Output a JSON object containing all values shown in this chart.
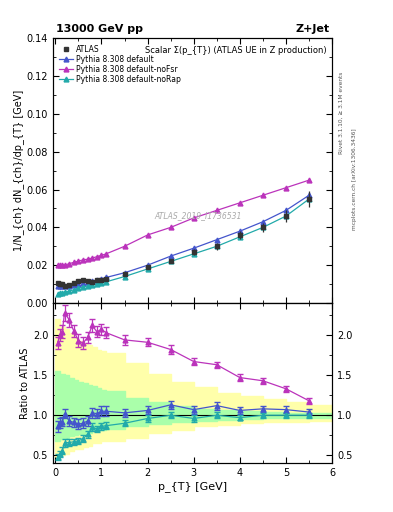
{
  "title_top": "13000 GeV pp",
  "title_right": "Z+Jet",
  "plot_title": "Scalar Σ(p_{T}) (ATLAS UE in Z production)",
  "ylabel_main": "1/N_{ch} dN_{ch}/dp_{T} [GeV]",
  "ylabel_ratio": "Ratio to ATLAS",
  "xlabel": "p_{T} [GeV]",
  "watermark": "ATLAS_2019_I1736531",
  "right_label_top": "Rivet 3.1.10, ≥ 3.1M events",
  "right_label_bot": "mcplots.cern.ch [arXiv:1306.3436]",
  "atlas_x": [
    0.05,
    0.1,
    0.15,
    0.2,
    0.3,
    0.4,
    0.5,
    0.6,
    0.7,
    0.8,
    0.9,
    1.0,
    1.1,
    1.5,
    2.0,
    2.5,
    3.0,
    3.5,
    4.0,
    4.5,
    5.0,
    5.5
  ],
  "atlas_y": [
    0.0105,
    0.01,
    0.0098,
    0.0088,
    0.0095,
    0.0105,
    0.0115,
    0.012,
    0.0118,
    0.0112,
    0.012,
    0.0122,
    0.0128,
    0.0155,
    0.0188,
    0.022,
    0.027,
    0.03,
    0.036,
    0.04,
    0.046,
    0.055
  ],
  "atlas_yerr": [
    0.0008,
    0.0007,
    0.0007,
    0.0006,
    0.0006,
    0.0007,
    0.0007,
    0.0007,
    0.0007,
    0.0007,
    0.0007,
    0.0007,
    0.0008,
    0.0008,
    0.001,
    0.001,
    0.0015,
    0.0018,
    0.002,
    0.0025,
    0.003,
    0.004
  ],
  "pythia_default_x": [
    0.05,
    0.1,
    0.15,
    0.2,
    0.3,
    0.4,
    0.5,
    0.6,
    0.7,
    0.8,
    0.9,
    1.0,
    1.1,
    1.5,
    2.0,
    2.5,
    3.0,
    3.5,
    4.0,
    4.5,
    5.0,
    5.5
  ],
  "pythia_default_y": [
    0.009,
    0.009,
    0.009,
    0.009,
    0.0088,
    0.0095,
    0.0102,
    0.0108,
    0.011,
    0.0115,
    0.0122,
    0.0128,
    0.0135,
    0.016,
    0.02,
    0.0248,
    0.029,
    0.0335,
    0.038,
    0.043,
    0.049,
    0.057
  ],
  "pythia_nofsr_x": [
    0.05,
    0.1,
    0.15,
    0.2,
    0.3,
    0.4,
    0.5,
    0.6,
    0.7,
    0.8,
    0.9,
    1.0,
    1.1,
    1.5,
    2.0,
    2.5,
    3.0,
    3.5,
    4.0,
    4.5,
    5.0,
    5.5
  ],
  "pythia_nofsr_y": [
    0.02,
    0.02,
    0.02,
    0.02,
    0.0208,
    0.0215,
    0.0222,
    0.0228,
    0.0232,
    0.0238,
    0.0245,
    0.0252,
    0.026,
    0.03,
    0.036,
    0.04,
    0.045,
    0.049,
    0.053,
    0.057,
    0.061,
    0.065
  ],
  "pythia_norap_x": [
    0.05,
    0.1,
    0.15,
    0.2,
    0.3,
    0.4,
    0.5,
    0.6,
    0.7,
    0.8,
    0.9,
    1.0,
    1.1,
    1.5,
    2.0,
    2.5,
    3.0,
    3.5,
    4.0,
    4.5,
    5.0,
    5.5
  ],
  "pythia_norap_y": [
    0.005,
    0.0052,
    0.0055,
    0.0058,
    0.0063,
    0.007,
    0.0078,
    0.0085,
    0.009,
    0.0095,
    0.01,
    0.0105,
    0.0112,
    0.014,
    0.018,
    0.022,
    0.026,
    0.03,
    0.035,
    0.04,
    0.046,
    0.055
  ],
  "ratio_default_y": [
    0.86,
    0.9,
    0.92,
    1.02,
    0.93,
    0.91,
    0.89,
    0.9,
    0.93,
    1.03,
    1.02,
    1.05,
    1.05,
    1.03,
    1.06,
    1.13,
    1.07,
    1.12,
    1.06,
    1.08,
    1.07,
    1.04
  ],
  "ratio_default_yerr": [
    0.07,
    0.06,
    0.06,
    0.06,
    0.06,
    0.06,
    0.06,
    0.06,
    0.06,
    0.06,
    0.06,
    0.06,
    0.06,
    0.05,
    0.05,
    0.05,
    0.05,
    0.05,
    0.04,
    0.04,
    0.04,
    0.04
  ],
  "ratio_nofsr_y": [
    1.9,
    2.0,
    2.04,
    2.28,
    2.19,
    2.05,
    1.93,
    1.9,
    1.97,
    2.12,
    2.04,
    2.07,
    2.03,
    1.94,
    1.91,
    1.82,
    1.67,
    1.63,
    1.47,
    1.43,
    1.33,
    1.18
  ],
  "ratio_nofsr_yerr": [
    0.07,
    0.08,
    0.08,
    0.1,
    0.09,
    0.08,
    0.08,
    0.07,
    0.07,
    0.08,
    0.07,
    0.07,
    0.07,
    0.06,
    0.05,
    0.05,
    0.04,
    0.04,
    0.04,
    0.04,
    0.04,
    0.04
  ],
  "ratio_norap_y": [
    0.48,
    0.52,
    0.56,
    0.66,
    0.66,
    0.67,
    0.68,
    0.71,
    0.76,
    0.85,
    0.83,
    0.86,
    0.87,
    0.9,
    0.96,
    1.0,
    0.96,
    1.0,
    0.97,
    1.0,
    1.0,
    1.0
  ],
  "ratio_norap_yerr": [
    0.04,
    0.04,
    0.04,
    0.05,
    0.04,
    0.04,
    0.04,
    0.04,
    0.04,
    0.05,
    0.04,
    0.04,
    0.04,
    0.04,
    0.04,
    0.04,
    0.04,
    0.04,
    0.03,
    0.03,
    0.03,
    0.03
  ],
  "band_x_edges": [
    0.0,
    0.1,
    0.2,
    0.3,
    0.4,
    0.5,
    0.6,
    0.7,
    0.8,
    0.9,
    1.0,
    1.1,
    1.5,
    2.0,
    2.5,
    3.0,
    3.5,
    4.0,
    4.5,
    5.0,
    5.5,
    6.0
  ],
  "yellow_lo": [
    0.45,
    0.5,
    0.52,
    0.55,
    0.58,
    0.58,
    0.6,
    0.62,
    0.65,
    0.66,
    0.68,
    0.68,
    0.72,
    0.78,
    0.82,
    0.86,
    0.88,
    0.9,
    0.91,
    0.92,
    0.93,
    0.93
  ],
  "yellow_hi": [
    2.2,
    2.1,
    2.08,
    2.02,
    1.96,
    1.92,
    1.9,
    1.88,
    1.85,
    1.82,
    1.8,
    1.78,
    1.65,
    1.52,
    1.42,
    1.35,
    1.28,
    1.24,
    1.2,
    1.17,
    1.13,
    1.13
  ],
  "green_lo": [
    0.68,
    0.7,
    0.72,
    0.74,
    0.75,
    0.76,
    0.77,
    0.78,
    0.8,
    0.81,
    0.82,
    0.83,
    0.86,
    0.89,
    0.91,
    0.93,
    0.94,
    0.95,
    0.96,
    0.96,
    0.97,
    0.97
  ],
  "green_hi": [
    1.55,
    1.52,
    1.5,
    1.47,
    1.44,
    1.42,
    1.4,
    1.38,
    1.36,
    1.34,
    1.32,
    1.3,
    1.22,
    1.16,
    1.12,
    1.08,
    1.06,
    1.05,
    1.04,
    1.03,
    1.03,
    1.03
  ],
  "color_atlas": "#333333",
  "color_default": "#4455cc",
  "color_nofsr": "#bb33bb",
  "color_norap": "#22aaaa",
  "color_yellow": "#ffffaa",
  "color_green": "#aaffaa",
  "ylim_main": [
    0.0,
    0.14
  ],
  "ylim_ratio": [
    0.4,
    2.4
  ],
  "xlim": [
    -0.05,
    6.0
  ],
  "yticks_main": [
    0.0,
    0.02,
    0.04,
    0.06,
    0.08,
    0.1,
    0.12,
    0.14
  ],
  "yticks_ratio": [
    0.5,
    1.0,
    1.5,
    2.0
  ],
  "xticks": [
    0,
    1,
    2,
    3,
    4,
    5,
    6
  ]
}
